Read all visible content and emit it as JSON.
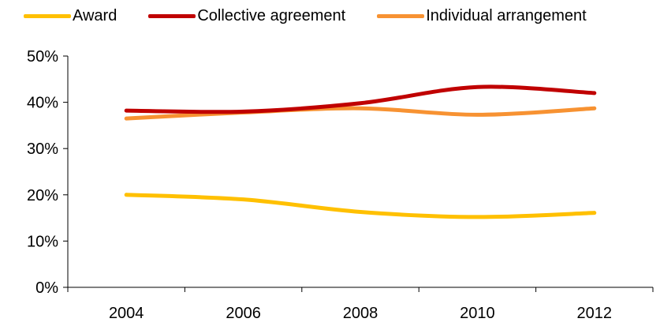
{
  "chart_data": {
    "type": "line",
    "title": "",
    "xlabel": "",
    "ylabel": "",
    "x": [
      2004,
      2006,
      2008,
      2010,
      2012
    ],
    "x_tick_labels": [
      "2004",
      "2006",
      "2008",
      "2010",
      "2012"
    ],
    "ylim": [
      0,
      50
    ],
    "y_ticks": [
      0,
      10,
      20,
      30,
      40,
      50
    ],
    "y_tick_labels": [
      "0%",
      "10%",
      "20%",
      "30%",
      "40%",
      "50%"
    ],
    "grid": false,
    "legend_position": "top",
    "series": [
      {
        "name": "Award",
        "color": "#FFC000",
        "values": [
          20.0,
          19.0,
          16.3,
          15.2,
          16.1
        ]
      },
      {
        "name": "Collective agreement",
        "color": "#C00000",
        "values": [
          38.2,
          38.0,
          39.8,
          43.3,
          42.0
        ]
      },
      {
        "name": "Individual arrangement",
        "color": "#F79232",
        "values": [
          36.5,
          37.8,
          38.7,
          37.3,
          38.7
        ]
      }
    ]
  }
}
